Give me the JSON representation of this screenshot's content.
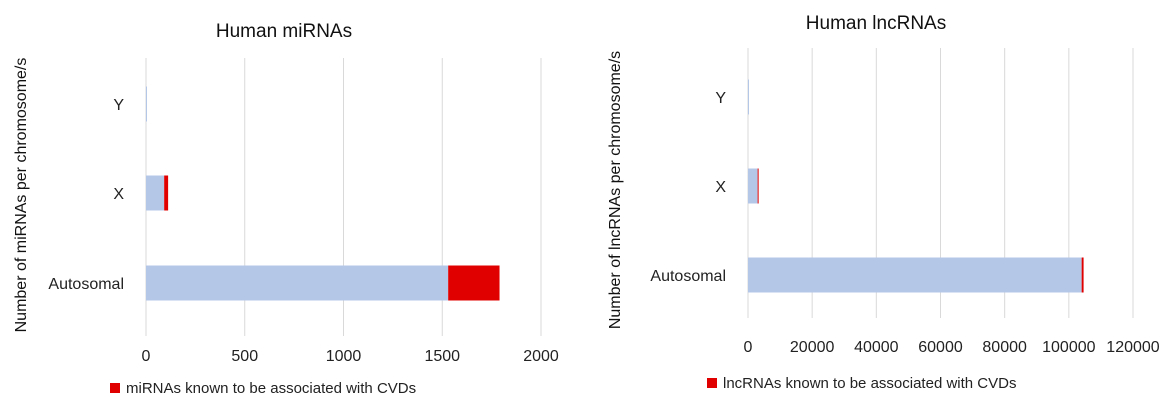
{
  "chart_data": [
    {
      "type": "bar",
      "orientation": "horizontal",
      "stacked": true,
      "title": "Human miRNAs",
      "ylabel": "Number of miRNAs per chromosome/s",
      "xlabel": "",
      "categories": [
        "Autosomal",
        "X",
        "Y"
      ],
      "xlim": [
        0,
        2000
      ],
      "xticks": [
        "0",
        "500",
        "1000",
        "1500",
        "2000"
      ],
      "series": [
        {
          "values": [
            1530,
            92,
            3
          ],
          "color": "#b4c7e7"
        },
        {
          "name": "miRNAs known to be associated with CVDs",
          "values": [
            260,
            20,
            0
          ],
          "color": "#e00000"
        }
      ],
      "grid": true,
      "legend_position": "bottom"
    },
    {
      "type": "bar",
      "orientation": "horizontal",
      "stacked": true,
      "title": "Human lncRNAs",
      "ylabel": "Number of lncRNAs per chromosome/s",
      "xlabel": "",
      "categories": [
        "Autosomal",
        "X",
        "Y"
      ],
      "xlim": [
        0,
        120000
      ],
      "xticks": [
        "0",
        "20000",
        "40000",
        "60000",
        "80000",
        "100000",
        "120000"
      ],
      "series": [
        {
          "values": [
            104000,
            3000,
            150
          ],
          "color": "#b4c7e7"
        },
        {
          "name": "lncRNAs known to be associated with CVDs",
          "values": [
            600,
            120,
            0
          ],
          "color": "#e00000"
        }
      ],
      "grid": true,
      "legend_position": "bottom"
    }
  ]
}
